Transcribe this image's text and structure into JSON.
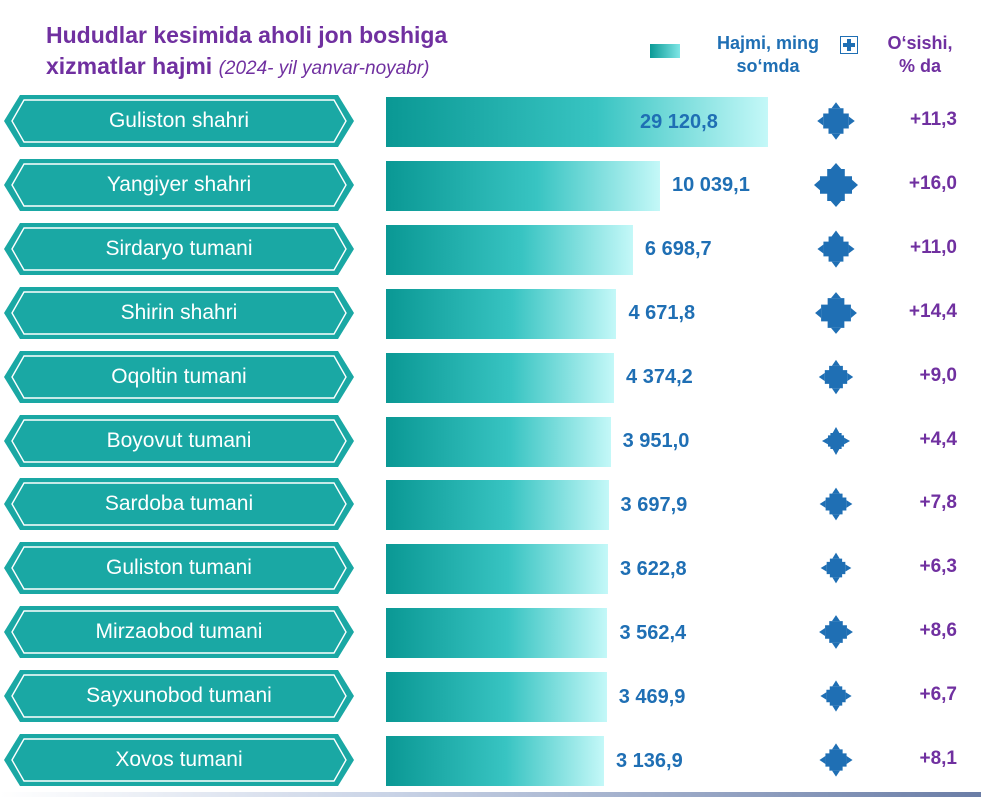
{
  "title": {
    "line1": "Hududlar kesimida aholi jon boshiga",
    "line2": "xizmatlar hajmi",
    "subtitle": "(2024- yil yanvar-noyabr)"
  },
  "legend": {
    "volume_line1": "Hajmi, ming",
    "volume_line2": "so‘mda",
    "growth_line1": "O‘sishi,",
    "growth_line2": "% da"
  },
  "colors": {
    "title": "#7030a0",
    "bar_dark": "#0a9894",
    "bar_light": "#c4f8f8",
    "value_text": "#1f6fb4",
    "growth_text": "#7030a0",
    "label_box": "#1aa8a4"
  },
  "chart_data": {
    "type": "bar",
    "orientation": "horizontal",
    "categories": [
      "Guliston shahri",
      "Yangiyer shahri",
      "Sirdaryo tumani",
      "Shirin shahri",
      "Oqoltin tumani",
      "Boyovut tumani",
      "Sardoba tumani",
      "Guliston tumani",
      "Mirzaobod tumani",
      "Sayxunobod tumani",
      "Xovos tumani"
    ],
    "series": [
      {
        "name": "Hajmi, ming so‘mda",
        "values": [
          29120.8,
          10039.1,
          6698.7,
          4671.8,
          4374.2,
          3951.0,
          3697.9,
          3622.8,
          3562.4,
          3469.9,
          3136.9
        ],
        "labels": [
          "29 120,8",
          "10 039,1",
          "6 698,7",
          "4 671,8",
          "4 374,2",
          "3 951,0",
          "3 697,9",
          "3 622,8",
          "3 562,4",
          "3 469,9",
          "3 136,9"
        ]
      },
      {
        "name": "O‘sishi, % da",
        "values": [
          11.3,
          16.0,
          11.0,
          14.4,
          9.0,
          4.4,
          7.8,
          6.3,
          8.6,
          6.7,
          8.1
        ],
        "labels": [
          "+11,3",
          "+16,0",
          "+11,0",
          "+14,4",
          "+9,0",
          "+4,4",
          "+7,8",
          "+6,3",
          "+8,6",
          "+6,7",
          "+8,1"
        ]
      }
    ],
    "grid": false,
    "legend_position": "top-right",
    "growth_icon": "plus-arrows-icon"
  }
}
